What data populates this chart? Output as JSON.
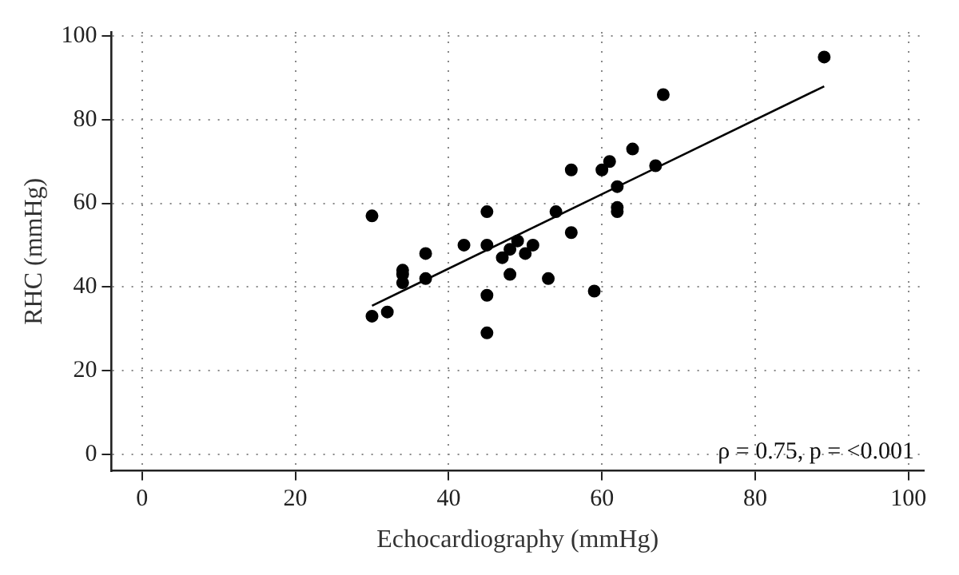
{
  "chart_data": {
    "type": "scatter",
    "xlabel": "Echocardiography (mmHg)",
    "ylabel": "RHC (mmHg)",
    "x": [
      30,
      30,
      32,
      34,
      34,
      34,
      37,
      37,
      42,
      45,
      45,
      45,
      45,
      47,
      48,
      48,
      49,
      50,
      51,
      53,
      54,
      56,
      56,
      59,
      60,
      61,
      62,
      62,
      62,
      64,
      67,
      68,
      89
    ],
    "series": [
      {
        "color": "#000000",
        "marker": "circle",
        "values": [
          57,
          33,
          34,
          44,
          43,
          41,
          48,
          42,
          50,
          58,
          50,
          38,
          29,
          47,
          49,
          43,
          51,
          48,
          50,
          42,
          58,
          68,
          53,
          39,
          68,
          70,
          64,
          59,
          58,
          73,
          69,
          86,
          95
        ]
      },
      {
        "type": "line",
        "color": "#000000",
        "marker": "none",
        "line_style": "solid",
        "x": [
          30,
          89
        ],
        "values": [
          35.5,
          88
        ]
      }
    ],
    "xlim": [
      -4,
      102
    ],
    "ylim": [
      -4,
      101
    ],
    "xticks": [
      0,
      20,
      40,
      60,
      80,
      100
    ],
    "yticks": [
      0,
      20,
      40,
      60,
      80,
      100
    ],
    "grid": true,
    "legend": false,
    "annotations": [
      "ρ = 0.75, p = <0.001"
    ]
  }
}
